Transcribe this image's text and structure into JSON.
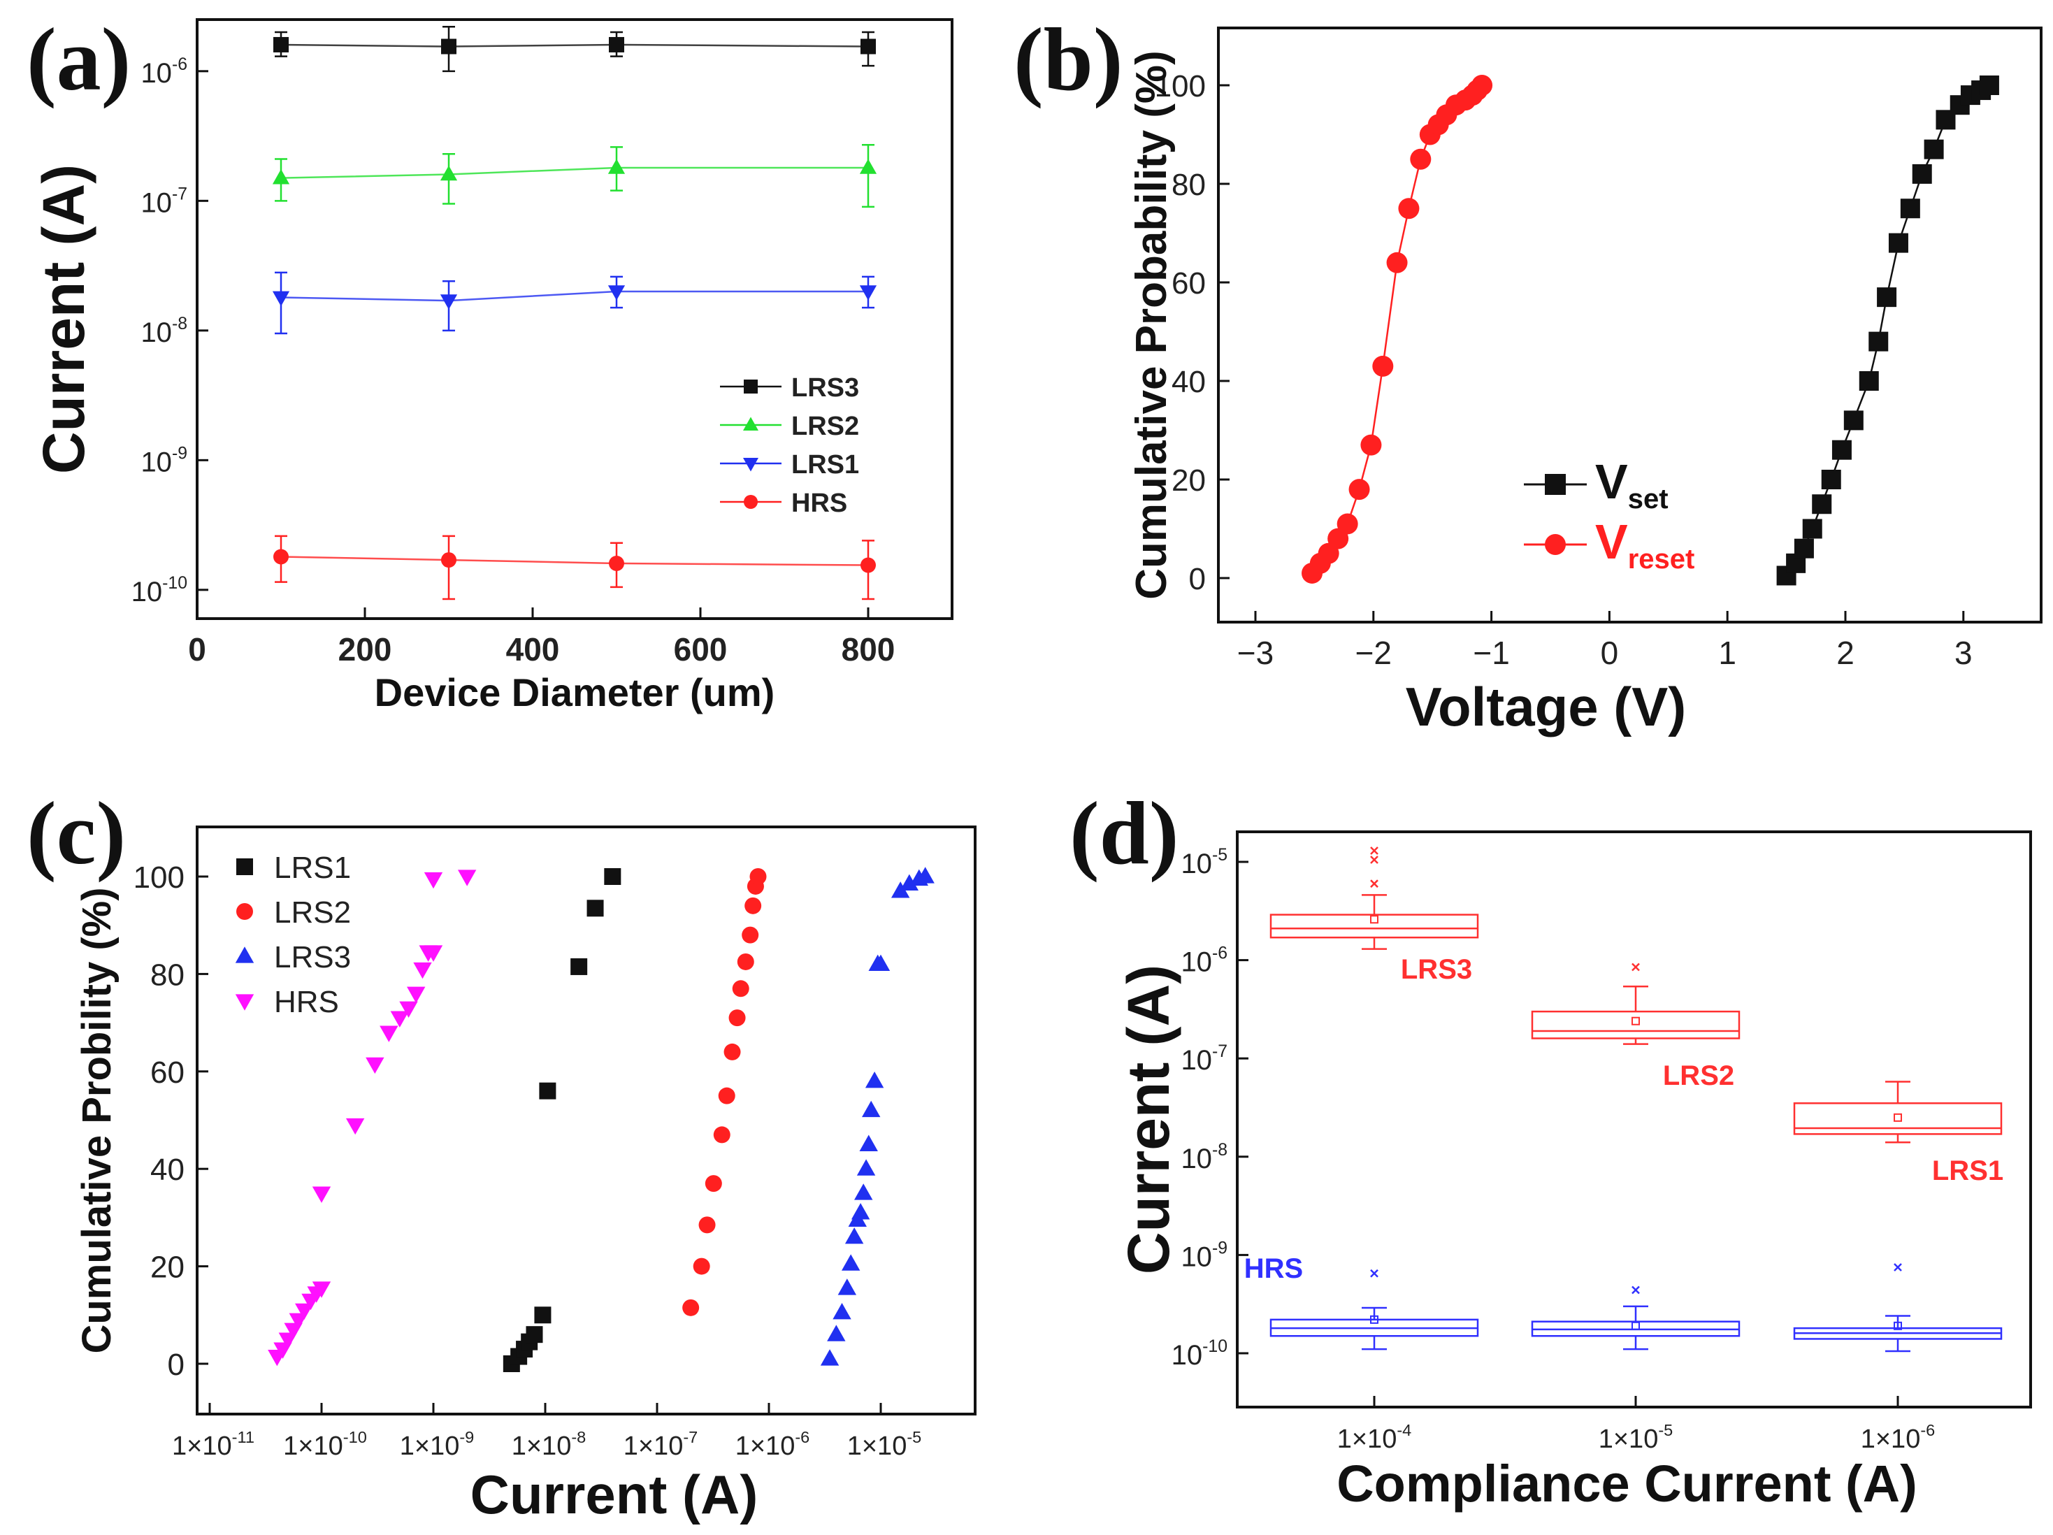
{
  "colors": {
    "black": "#111111",
    "red": "#ff2020",
    "green": "#22e030",
    "blue": "#2030f0",
    "magenta": "#ff10ff",
    "box_red": "#ff3030",
    "box_blue": "#3030ff"
  },
  "chart_data": [
    {
      "panel": "(a)",
      "type": "line",
      "xlabel": "Device Diameter (um)",
      "ylabel": "Current (A)",
      "x_scale": "linear",
      "y_scale": "log",
      "xlim": [
        0,
        900
      ],
      "ylim": [
        6e-11,
        2.5e-06
      ],
      "x_ticks": [
        0,
        200,
        400,
        600,
        800
      ],
      "x_tick_labels": [
        "0",
        "200",
        "400",
        "600",
        "800"
      ],
      "y_ticks": [
        1e-10,
        1e-09,
        1e-08,
        1e-07,
        1e-06
      ],
      "y_tick_labels": [
        [
          "10",
          "-10"
        ],
        [
          "10",
          "-9"
        ],
        [
          "10",
          "-8"
        ],
        [
          "10",
          "-7"
        ],
        [
          "10",
          "-6"
        ]
      ],
      "legend_position": "center-right",
      "x": [
        100,
        300,
        500,
        800
      ],
      "series": [
        {
          "name": "LRS3",
          "marker": "square",
          "color": "#111111",
          "values": [
            1.6e-06,
            1.55e-06,
            1.6e-06,
            1.55e-06
          ],
          "err_low": [
            1.3e-06,
            1e-06,
            1.3e-06,
            1.1e-06
          ],
          "err_high": [
            2e-06,
            2.2e-06,
            2e-06,
            2e-06
          ]
        },
        {
          "name": "LRS2",
          "marker": "triangle-up",
          "color": "#22e030",
          "values": [
            1.5e-07,
            1.6e-07,
            1.8e-07,
            1.8e-07
          ],
          "err_low": [
            1e-07,
            9.5e-08,
            1.2e-07,
            9e-08
          ],
          "err_high": [
            2.1e-07,
            2.3e-07,
            2.6e-07,
            2.7e-07
          ]
        },
        {
          "name": "LRS1",
          "marker": "triangle-down",
          "color": "#2030f0",
          "values": [
            1.8e-08,
            1.7e-08,
            2e-08,
            2e-08
          ],
          "err_low": [
            9.5e-09,
            1e-08,
            1.5e-08,
            1.5e-08
          ],
          "err_high": [
            2.8e-08,
            2.4e-08,
            2.6e-08,
            2.6e-08
          ]
        },
        {
          "name": "HRS",
          "marker": "circle",
          "color": "#ff2020",
          "values": [
            1.8e-10,
            1.7e-10,
            1.6e-10,
            1.55e-10
          ],
          "err_low": [
            1.15e-10,
            8.5e-11,
            1.05e-10,
            8.5e-11
          ],
          "err_high": [
            2.6e-10,
            2.6e-10,
            2.3e-10,
            2.4e-10
          ]
        }
      ]
    },
    {
      "panel": "(b)",
      "type": "line",
      "xlabel": "Voltage (V)",
      "ylabel": "Cumulative Probability (%)",
      "x_scale": "linear",
      "y_scale": "linear",
      "xlim": [
        -3,
        3.5
      ],
      "ylim": [
        -10,
        110
      ],
      "x_ticks": [
        -3,
        -2,
        -1,
        0,
        1,
        2,
        3
      ],
      "x_tick_labels": [
        "−3",
        "−2",
        "−1",
        "0",
        "1",
        "2",
        "3"
      ],
      "y_ticks": [
        0,
        20,
        40,
        60,
        80,
        100
      ],
      "y_tick_labels": [
        "0",
        "20",
        "40",
        "60",
        "80",
        "100"
      ],
      "legend_position": "center",
      "series": [
        {
          "name": "V",
          "subscript": "set",
          "marker": "square",
          "color": "#111111",
          "x": [
            1.5,
            1.58,
            1.65,
            1.72,
            1.8,
            1.88,
            1.97,
            2.07,
            2.2,
            2.28,
            2.35,
            2.45,
            2.55,
            2.65,
            2.75,
            2.85,
            2.97,
            3.06,
            3.15,
            3.22
          ],
          "y": [
            0.5,
            3,
            6,
            10,
            15,
            20,
            26,
            32,
            40,
            48,
            57,
            68,
            75,
            82,
            87,
            93,
            96,
            98,
            99,
            100
          ]
        },
        {
          "name": "V",
          "subscript": "reset",
          "marker": "circle",
          "color": "#ff2020",
          "x": [
            -2.52,
            -2.45,
            -2.38,
            -2.3,
            -2.22,
            -2.12,
            -2.02,
            -1.92,
            -1.8,
            -1.7,
            -1.6,
            -1.52,
            -1.45,
            -1.38,
            -1.3,
            -1.22,
            -1.16,
            -1.12,
            -1.08
          ],
          "y": [
            1,
            3,
            5,
            8,
            11,
            18,
            27,
            43,
            64,
            75,
            85,
            90,
            92,
            94,
            96,
            97,
            98,
            99,
            100
          ]
        }
      ]
    },
    {
      "panel": "(c)",
      "type": "scatter",
      "xlabel": "Current (A)",
      "ylabel": "Cumulative Probility (%)",
      "x_scale": "log",
      "y_scale": "linear",
      "xlim": [
        1e-11,
        5e-05
      ],
      "ylim": [
        -10,
        112
      ],
      "x_ticks": [
        1e-11,
        1e-10,
        1e-09,
        1e-08,
        1e-07,
        1e-06,
        1e-05
      ],
      "x_tick_labels": [
        [
          "1×10",
          "-11"
        ],
        [
          "1×10",
          "-10"
        ],
        [
          "1×10",
          "-9"
        ],
        [
          "1×10",
          "-8"
        ],
        [
          "1×10",
          "-7"
        ],
        [
          "1×10",
          "-6"
        ],
        [
          "1×10",
          "-5"
        ]
      ],
      "y_ticks": [
        0,
        20,
        40,
        60,
        80,
        100
      ],
      "y_tick_labels": [
        "0",
        "20",
        "40",
        "60",
        "80",
        "100"
      ],
      "legend_position": "top-left",
      "series": [
        {
          "name": "LRS1",
          "marker": "square",
          "color": "#111111",
          "x": [
            5e-09,
            5.8e-09,
            6.5e-09,
            7.2e-09,
            8e-09,
            9.5e-09,
            1.05e-08,
            2e-08,
            2.8e-08,
            4e-08
          ],
          "y": [
            0,
            1.5,
            3,
            4.5,
            6,
            10,
            56,
            81.5,
            93.5,
            100
          ]
        },
        {
          "name": "LRS2",
          "marker": "circle",
          "color": "#ff2020",
          "x": [
            2e-07,
            2.5e-07,
            2.8e-07,
            3.2e-07,
            3.8e-07,
            4.2e-07,
            4.7e-07,
            5.2e-07,
            5.6e-07,
            6.2e-07,
            6.8e-07,
            7.2e-07,
            7.6e-07,
            8e-07
          ],
          "y": [
            11.5,
            20,
            28.5,
            37,
            47,
            55,
            64,
            71,
            77,
            82.5,
            88,
            94,
            98,
            100
          ]
        },
        {
          "name": "LRS3",
          "marker": "triangle-up",
          "color": "#2030f0",
          "x": [
            3.5e-06,
            4e-06,
            4.5e-06,
            5e-06,
            5.4e-06,
            5.8e-06,
            6.2e-06,
            6.6e-06,
            7e-06,
            7.4e-06,
            7.8e-06,
            8.2e-06,
            8.8e-06,
            9.4e-06,
            1e-05,
            1.5e-05,
            1.8e-05,
            2.2e-05,
            2.5e-05
          ],
          "y": [
            1,
            6,
            10.5,
            15.5,
            20.5,
            26,
            29.5,
            31,
            35,
            40,
            45,
            52,
            58,
            82,
            82,
            97,
            98.5,
            99.5,
            100
          ]
        },
        {
          "name": "HRS",
          "marker": "triangle-down",
          "color": "#ff10ff",
          "x": [
            4e-11,
            4.5e-11,
            5e-11,
            5.6e-11,
            6.2e-11,
            7e-11,
            8e-11,
            9e-11,
            1e-10,
            1e-10,
            2e-10,
            3e-10,
            4e-10,
            5e-10,
            6e-10,
            7e-10,
            8e-10,
            9e-10,
            1e-09,
            1e-09,
            2e-09
          ],
          "y": [
            1.5,
            3,
            5,
            7,
            9,
            11,
            13,
            14.5,
            15.5,
            35,
            49,
            61.5,
            68,
            71,
            73,
            76,
            81,
            84.5,
            84.5,
            99.5,
            100
          ]
        }
      ]
    },
    {
      "panel": "(d)",
      "type": "box",
      "xlabel": "Compliance Current (A)",
      "ylabel": "Current (A)",
      "x_scale": "categorical",
      "y_scale": "log",
      "ylim": [
        5e-11,
        2e-05
      ],
      "categories": [
        [
          "1×10",
          "-4"
        ],
        [
          "1×10",
          "-5"
        ],
        [
          "1×10",
          "-6"
        ]
      ],
      "y_ticks": [
        1e-10,
        1e-09,
        1e-08,
        1e-07,
        1e-06,
        1e-05
      ],
      "y_tick_labels": [
        [
          "10",
          "-10"
        ],
        [
          "10",
          "-9"
        ],
        [
          "10",
          "-8"
        ],
        [
          "10",
          "-7"
        ],
        [
          "10",
          "-6"
        ],
        [
          "10",
          "-5"
        ]
      ],
      "boxes": [
        {
          "label": "LRS3",
          "color": "#ff3030",
          "cat": 0,
          "whisker_low": 1.3e-06,
          "q1": 1.7e-06,
          "median": 2.1e-06,
          "mean": 2.6e-06,
          "q3": 2.9e-06,
          "whisker_high": 4.6e-06,
          "outliers": [
            6e-06,
            1.05e-05,
            1.3e-05
          ]
        },
        {
          "label": "LRS2",
          "color": "#ff3030",
          "cat": 1,
          "whisker_low": 1.4e-07,
          "q1": 1.6e-07,
          "median": 1.9e-07,
          "mean": 2.4e-07,
          "q3": 3e-07,
          "whisker_high": 5.4e-07,
          "outliers": [
            8.5e-07
          ]
        },
        {
          "label": "LRS1",
          "color": "#ff3030",
          "cat": 2,
          "whisker_low": 1.4e-08,
          "q1": 1.7e-08,
          "median": 1.95e-08,
          "mean": 2.5e-08,
          "q3": 3.5e-08,
          "whisker_high": 5.8e-08,
          "outliers": []
        },
        {
          "label": "HRS",
          "color": "#3030ff",
          "cat": 0,
          "whisker_low": 1.1e-10,
          "q1": 1.5e-10,
          "median": 1.8e-10,
          "mean": 2.2e-10,
          "q3": 2.2e-10,
          "whisker_high": 2.9e-10,
          "outliers": [
            6.5e-10
          ]
        },
        {
          "label": "",
          "color": "#3030ff",
          "cat": 1,
          "whisker_low": 1.1e-10,
          "q1": 1.5e-10,
          "median": 1.75e-10,
          "mean": 1.9e-10,
          "q3": 2.1e-10,
          "whisker_high": 3e-10,
          "outliers": [
            4.4e-10
          ]
        },
        {
          "label": "",
          "color": "#3030ff",
          "cat": 2,
          "whisker_low": 1.05e-10,
          "q1": 1.4e-10,
          "median": 1.6e-10,
          "mean": 1.9e-10,
          "q3": 1.8e-10,
          "whisker_high": 2.4e-10,
          "outliers": [
            7.5e-10
          ]
        }
      ],
      "labels_text": [
        "LRS3",
        "LRS2",
        "LRS1",
        "HRS"
      ]
    }
  ],
  "panel_letters": [
    "(a)",
    "(b)",
    "(c)",
    "(d)"
  ]
}
